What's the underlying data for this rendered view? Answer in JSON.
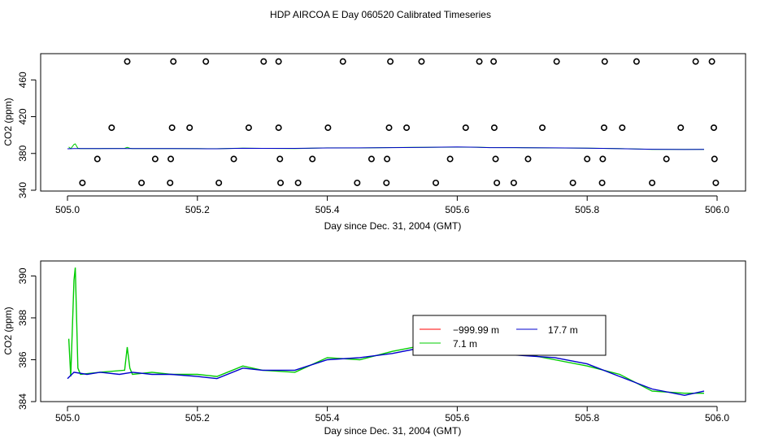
{
  "title": "HDP AIRCOA E  Day 060520  Calibrated Timeseries",
  "colors": {
    "red": "#ff0000",
    "green": "#00cc00",
    "blue": "#0000cc",
    "axis": "#000000"
  },
  "chart_data": [
    {
      "type": "scatter",
      "xlabel": "Day since Dec. 31, 2004 (GMT)",
      "ylabel": "CO2 (ppm)",
      "xlim": [
        505.0,
        506.0
      ],
      "ylim": [
        340,
        485
      ],
      "x_ticks": [
        "505.0",
        "505.2",
        "505.4",
        "505.6",
        "505.8",
        "506.0"
      ],
      "y_ticks": [
        "340",
        "380",
        "420",
        "460"
      ],
      "points": [
        [
          505.092,
          480
        ],
        [
          505.163,
          480
        ],
        [
          505.213,
          480
        ],
        [
          505.302,
          480
        ],
        [
          505.325,
          480
        ],
        [
          505.424,
          480
        ],
        [
          505.497,
          480
        ],
        [
          505.545,
          480
        ],
        [
          505.634,
          480
        ],
        [
          505.656,
          480
        ],
        [
          505.753,
          480
        ],
        [
          505.827,
          480
        ],
        [
          505.876,
          480
        ],
        [
          505.967,
          480
        ],
        [
          505.992,
          480
        ],
        [
          505.068,
          408
        ],
        [
          505.161,
          408
        ],
        [
          505.188,
          408
        ],
        [
          505.279,
          408
        ],
        [
          505.325,
          408
        ],
        [
          505.401,
          408
        ],
        [
          505.495,
          408
        ],
        [
          505.522,
          408
        ],
        [
          505.613,
          408
        ],
        [
          505.657,
          408
        ],
        [
          505.731,
          408
        ],
        [
          505.826,
          408
        ],
        [
          505.854,
          408
        ],
        [
          505.944,
          408
        ],
        [
          505.995,
          408
        ],
        [
          505.046,
          374
        ],
        [
          505.135,
          374
        ],
        [
          505.159,
          374
        ],
        [
          505.256,
          374
        ],
        [
          505.327,
          374
        ],
        [
          505.377,
          374
        ],
        [
          505.468,
          374
        ],
        [
          505.492,
          374
        ],
        [
          505.589,
          374
        ],
        [
          505.659,
          374
        ],
        [
          505.709,
          374
        ],
        [
          505.8,
          374
        ],
        [
          505.824,
          374
        ],
        [
          505.922,
          374
        ],
        [
          505.996,
          374
        ],
        [
          505.023,
          348
        ],
        [
          505.114,
          348
        ],
        [
          505.158,
          348
        ],
        [
          505.233,
          348
        ],
        [
          505.328,
          348
        ],
        [
          505.355,
          348
        ],
        [
          505.446,
          348
        ],
        [
          505.491,
          348
        ],
        [
          505.567,
          348
        ],
        [
          505.661,
          348
        ],
        [
          505.687,
          348
        ],
        [
          505.778,
          348
        ],
        [
          505.823,
          348
        ],
        [
          505.9,
          348
        ],
        [
          505.998,
          348
        ]
      ],
      "series": [
        {
          "color": "#00cc00",
          "values": "identical-to-bottom-green"
        },
        {
          "color": "#0000cc",
          "values": "identical-to-bottom-blue"
        }
      ]
    },
    {
      "type": "line",
      "xlabel": "Day since Dec. 31, 2004 (GMT)",
      "ylabel": "CO2 (ppm)",
      "xlim": [
        505.0,
        506.0
      ],
      "ylim": [
        384,
        390.6
      ],
      "x_ticks": [
        "505.0",
        "505.2",
        "505.4",
        "505.6",
        "505.8",
        "506.0"
      ],
      "y_ticks": [
        "384",
        "386",
        "388",
        "390"
      ],
      "legend": {
        "position": "top-right",
        "entries": [
          {
            "name": "−999.99 m",
            "color": "#ff0000"
          },
          {
            "name": "17.7 m",
            "color": "#0000cc"
          },
          {
            "name": "7.1 m",
            "color": "#00cc00"
          }
        ]
      },
      "series": [
        {
          "name": "17.7 m",
          "color": "#0000cc",
          "x": [
            505.0,
            505.01,
            505.03,
            505.05,
            505.08,
            505.1,
            505.13,
            505.16,
            505.2,
            505.23,
            505.27,
            505.3,
            505.35,
            505.4,
            505.45,
            505.5,
            505.55,
            505.6,
            505.63,
            505.65,
            505.7,
            505.75,
            505.8,
            505.85,
            505.9,
            505.95,
            505.98
          ],
          "values": [
            385.1,
            385.4,
            385.3,
            385.4,
            385.3,
            385.4,
            385.3,
            385.3,
            385.2,
            385.1,
            385.6,
            385.5,
            385.5,
            386.0,
            386.1,
            386.3,
            386.6,
            387.0,
            386.8,
            386.3,
            386.2,
            386.1,
            385.8,
            385.2,
            384.6,
            384.3,
            384.5
          ]
        },
        {
          "name": "7.1 m",
          "color": "#00cc00",
          "x": [
            505.002,
            505.005,
            505.01,
            505.012,
            505.014,
            505.016,
            505.02,
            505.05,
            505.088,
            505.092,
            505.096,
            505.1,
            505.13,
            505.16,
            505.2,
            505.23,
            505.27,
            505.3,
            505.35,
            505.4,
            505.45,
            505.5,
            505.55,
            505.6,
            505.63,
            505.65,
            505.7,
            505.75,
            505.8,
            505.85,
            505.9,
            505.95,
            505.98
          ],
          "values": [
            387.0,
            385.2,
            389.8,
            390.4,
            388.0,
            385.6,
            385.3,
            385.4,
            385.5,
            386.6,
            385.6,
            385.3,
            385.4,
            385.3,
            385.3,
            385.2,
            385.7,
            385.5,
            385.4,
            386.1,
            386.0,
            386.4,
            386.7,
            386.9,
            386.8,
            386.4,
            386.3,
            386.0,
            385.7,
            385.3,
            384.5,
            384.4,
            384.4
          ]
        }
      ]
    }
  ]
}
